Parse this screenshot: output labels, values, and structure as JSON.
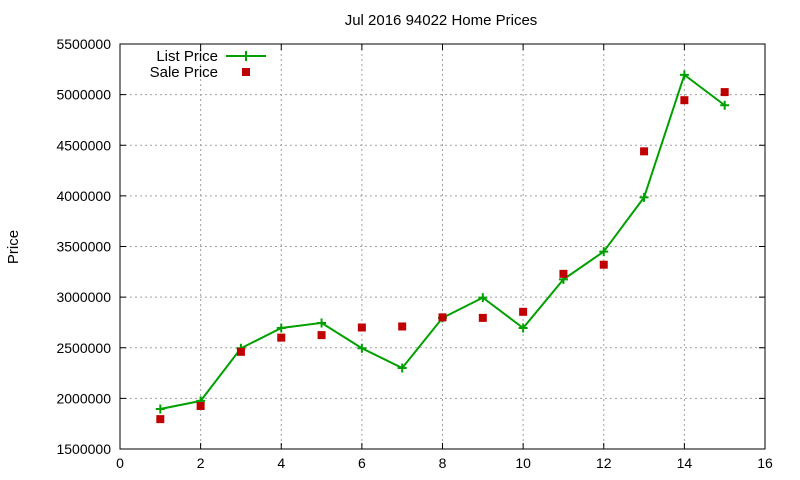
{
  "chart_data": {
    "type": "line",
    "title": "Jul 2016 94022 Home Prices",
    "xlabel": "",
    "ylabel": "Price",
    "xlim": [
      0,
      16
    ],
    "ylim": [
      1500000,
      5500000
    ],
    "x_ticks": [
      "0",
      "2",
      "4",
      "6",
      "8",
      "10",
      "12",
      "14",
      "16"
    ],
    "y_ticks": [
      "1500000",
      "2000000",
      "2500000",
      "3000000",
      "3500000",
      "4000000",
      "4500000",
      "5000000",
      "5500000"
    ],
    "grid": true,
    "legend_position": "top-left",
    "series": [
      {
        "name": "List Price",
        "style": "line-with-plus-markers",
        "color": "#00a000",
        "x": [
          1,
          2,
          3,
          4,
          5,
          6,
          7,
          8,
          9,
          10,
          11,
          12,
          13,
          14,
          15
        ],
        "y": [
          1895000,
          1975000,
          2495000,
          2695000,
          2745000,
          2495000,
          2300000,
          2795000,
          2995000,
          2695000,
          3175000,
          3450000,
          3985000,
          5195000,
          4895000
        ]
      },
      {
        "name": "Sale Price",
        "style": "square-markers",
        "color": "#c00000",
        "x": [
          1,
          2,
          3,
          4,
          5,
          6,
          7,
          8,
          9,
          10,
          11,
          12,
          13,
          14,
          15
        ],
        "y": [
          1795000,
          1925000,
          2460000,
          2600000,
          2625000,
          2700000,
          2710000,
          2800000,
          2795000,
          2855000,
          3230000,
          3320000,
          4440000,
          4945000,
          5025000
        ]
      }
    ]
  }
}
